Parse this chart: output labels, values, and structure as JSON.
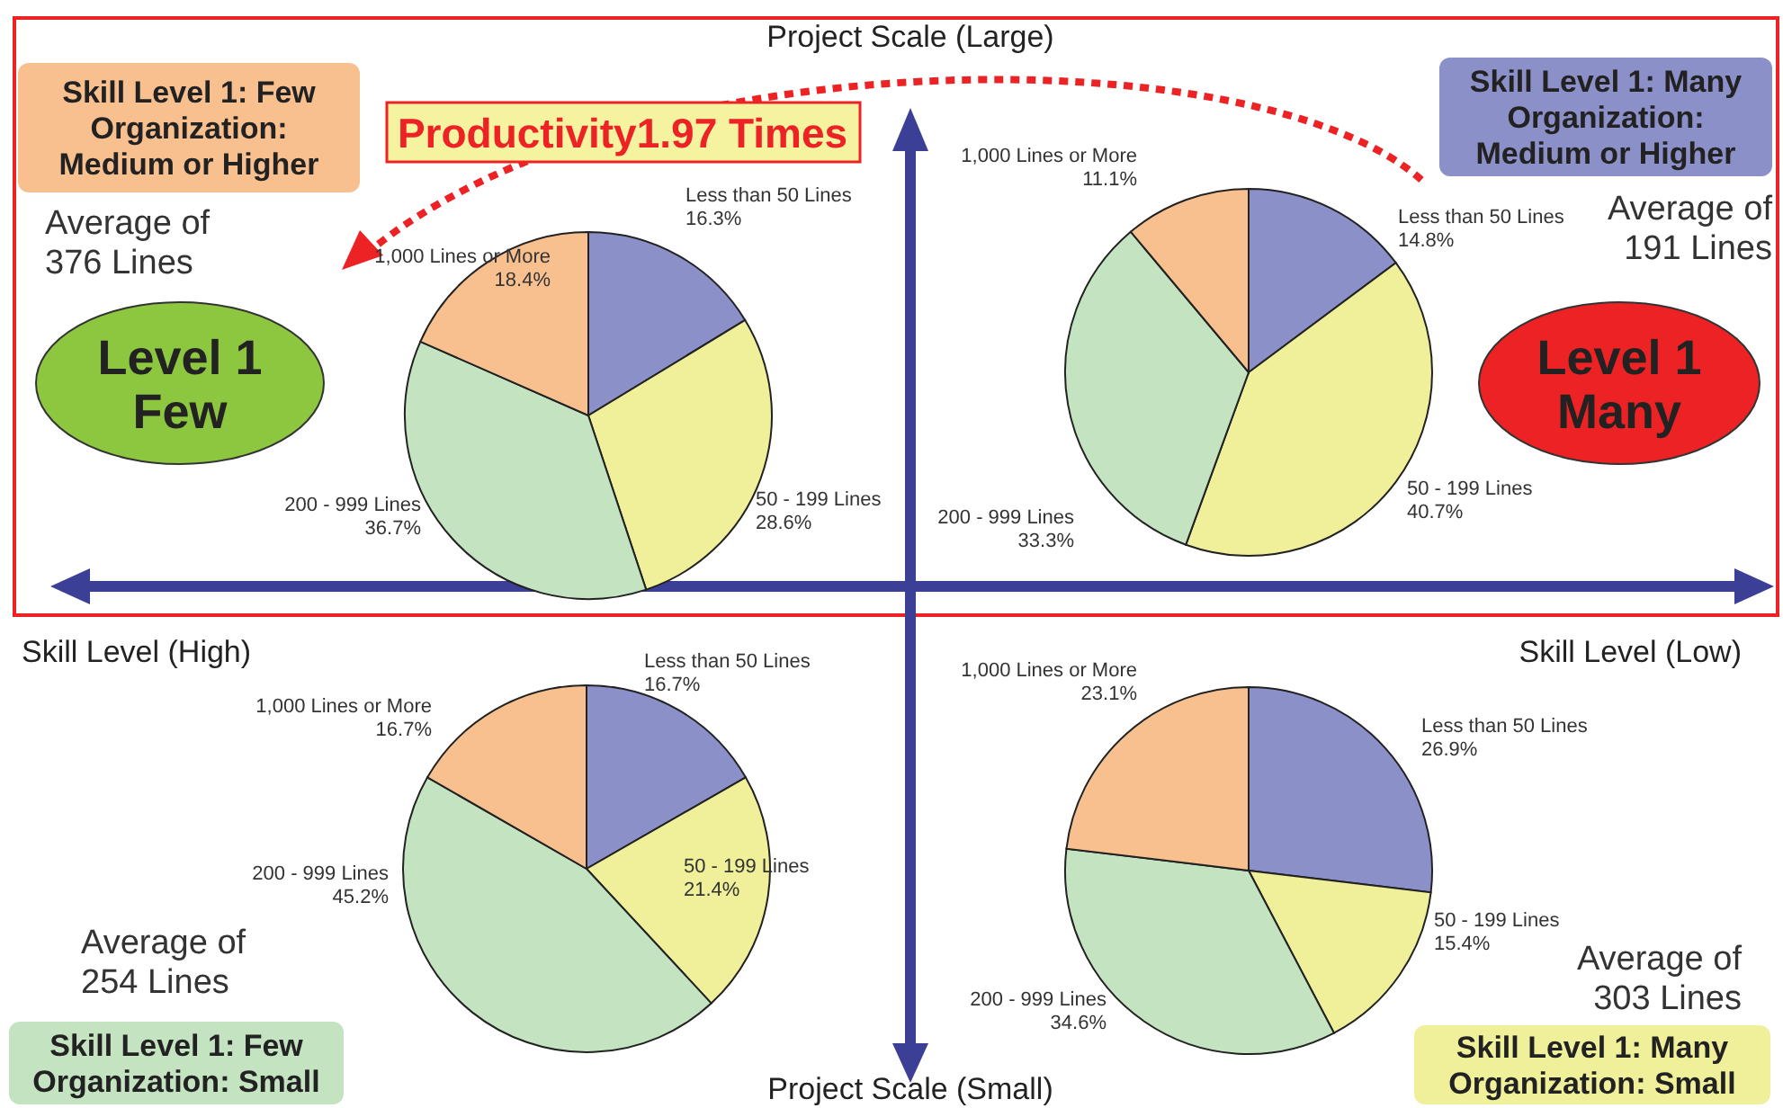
{
  "chart_data": [
    {
      "type": "pie",
      "title": "Skill Level 1: Few\nOrganization:\nMedium or Higher",
      "annotations": [
        "Average of\n376 Lines",
        "Level 1\nFew"
      ],
      "categories": [
        "Less than 50 Lines",
        "50 - 199 Lines",
        "200 - 999 Lines",
        "1,000 Lines or More"
      ],
      "values": [
        16.3,
        28.6,
        36.7,
        18.4
      ],
      "value_labels": [
        "16.3%",
        "28.6%",
        "36.7%",
        "18.4%"
      ],
      "colors": [
        "#8b90c8",
        "#f0ef9a",
        "#c4e3c1",
        "#f9c08f"
      ]
    },
    {
      "type": "pie",
      "title": "Skill Level 1: Many\nOrganization:\nMedium or Higher",
      "annotations": [
        "Average of\n191 Lines",
        "Level 1\nMany"
      ],
      "categories": [
        "Less than 50 Lines",
        "50 - 199 Lines",
        "200 - 999 Lines",
        "1,000 Lines or More"
      ],
      "values": [
        14.8,
        40.7,
        33.3,
        11.1
      ],
      "value_labels": [
        "14.8%",
        "40.7%",
        "33.3%",
        "11.1%"
      ],
      "colors": [
        "#8b90c8",
        "#f0ef9a",
        "#c4e3c1",
        "#f9c08f"
      ]
    },
    {
      "type": "pie",
      "title": "Skill Level 1: Few\nOrganization: Small",
      "annotations": [
        "Average of\n254 Lines"
      ],
      "categories": [
        "Less than 50 Lines",
        "50 - 199 Lines",
        "200 - 999  Lines",
        "1,000 Lines or More"
      ],
      "values": [
        16.7,
        21.4,
        45.2,
        16.7
      ],
      "value_labels": [
        "16.7%",
        "21.4%",
        "45.2%",
        "16.7%"
      ],
      "colors": [
        "#8b90c8",
        "#f0ef9a",
        "#c4e3c1",
        "#f9c08f"
      ]
    },
    {
      "type": "pie",
      "title": "Skill Level 1: Many\nOrganization: Small",
      "annotations": [
        "Average of\n303 Lines"
      ],
      "categories": [
        "Less than 50 Lines",
        "50 - 199 Lines",
        "200 - 999 Lines",
        "1,000 Lines or More"
      ],
      "values": [
        26.9,
        15.4,
        34.6,
        23.1
      ],
      "value_labels": [
        "26.9%",
        "15.4%",
        "34.6%",
        "23.1%"
      ],
      "colors": [
        "#8b90c8",
        "#f0ef9a",
        "#c4e3c1",
        "#f9c08f"
      ]
    },
    {
      "type": "other",
      "annotations": [
        "Project Scale (Large)",
        "Project Scale (Small)",
        "Skill Level (High)",
        "Skill Level (Low)",
        "Productivity1.97 Times"
      ]
    }
  ]
}
